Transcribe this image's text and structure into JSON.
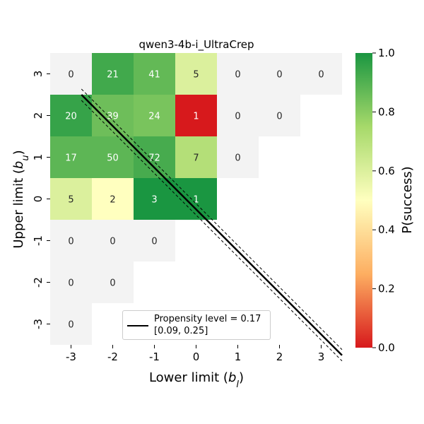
{
  "chart_data": {
    "type": "heatmap",
    "title": "qwen3-4b-i_UltraCrep",
    "xlabel": "Lower limit (b_l)",
    "ylabel": "Upper limit (b_u)",
    "x_categories": [
      "-3",
      "-2",
      "-1",
      "0",
      "1",
      "2",
      "3"
    ],
    "y_categories": [
      "3",
      "2",
      "1",
      "0",
      "-1",
      "-2",
      "-3"
    ],
    "cells": [
      {
        "x": -3,
        "y": 3,
        "count": 0,
        "p": null
      },
      {
        "x": -2,
        "y": 3,
        "count": 21,
        "p": 0.93
      },
      {
        "x": -1,
        "y": 3,
        "count": 41,
        "p": 0.87
      },
      {
        "x": 0,
        "y": 3,
        "count": 5,
        "p": 0.6
      },
      {
        "x": 1,
        "y": 3,
        "count": 0,
        "p": null
      },
      {
        "x": 2,
        "y": 3,
        "count": 0,
        "p": null
      },
      {
        "x": 3,
        "y": 3,
        "count": 0,
        "p": null
      },
      {
        "x": -3,
        "y": 2,
        "count": 20,
        "p": 0.95
      },
      {
        "x": -2,
        "y": 2,
        "count": 39,
        "p": 0.85
      },
      {
        "x": -1,
        "y": 2,
        "count": 24,
        "p": 0.83
      },
      {
        "x": 0,
        "y": 2,
        "count": 1,
        "p": 0.0
      },
      {
        "x": 1,
        "y": 2,
        "count": 0,
        "p": null
      },
      {
        "x": 2,
        "y": 2,
        "count": 0,
        "p": null
      },
      {
        "x": -3,
        "y": 1,
        "count": 17,
        "p": 0.88
      },
      {
        "x": -2,
        "y": 1,
        "count": 50,
        "p": 0.88
      },
      {
        "x": -1,
        "y": 1,
        "count": 72,
        "p": 0.92
      },
      {
        "x": 0,
        "y": 1,
        "count": 7,
        "p": 0.71
      },
      {
        "x": 1,
        "y": 1,
        "count": 0,
        "p": null
      },
      {
        "x": -3,
        "y": 0,
        "count": 5,
        "p": 0.6
      },
      {
        "x": -2,
        "y": 0,
        "count": 2,
        "p": 0.5
      },
      {
        "x": -1,
        "y": 0,
        "count": 3,
        "p": 1.0
      },
      {
        "x": 0,
        "y": 0,
        "count": 1,
        "p": 1.0
      },
      {
        "x": -3,
        "y": -1,
        "count": 0,
        "p": null
      },
      {
        "x": -2,
        "y": -1,
        "count": 0,
        "p": null
      },
      {
        "x": -1,
        "y": -1,
        "count": 0,
        "p": null
      },
      {
        "x": -3,
        "y": -2,
        "count": 0,
        "p": null
      },
      {
        "x": -2,
        "y": -2,
        "count": 0,
        "p": null
      },
      {
        "x": -3,
        "y": -3,
        "count": 0,
        "p": null
      }
    ],
    "colorbar": {
      "label": "P(success)",
      "range": [
        0.0,
        1.0
      ],
      "ticks": [
        "0.0",
        "0.2",
        "0.4",
        "0.6",
        "0.8",
        "1.0"
      ],
      "colormap": "RdYlGn"
    },
    "missing_color": "#f3f3f3",
    "line": {
      "label": "Propensity level = 0.17",
      "ci_label": "[0.09, 0.25]",
      "value": 0.17,
      "ci": [
        0.09,
        0.25
      ],
      "color": "#000000"
    },
    "legend_position": "lower center",
    "grid": false
  }
}
